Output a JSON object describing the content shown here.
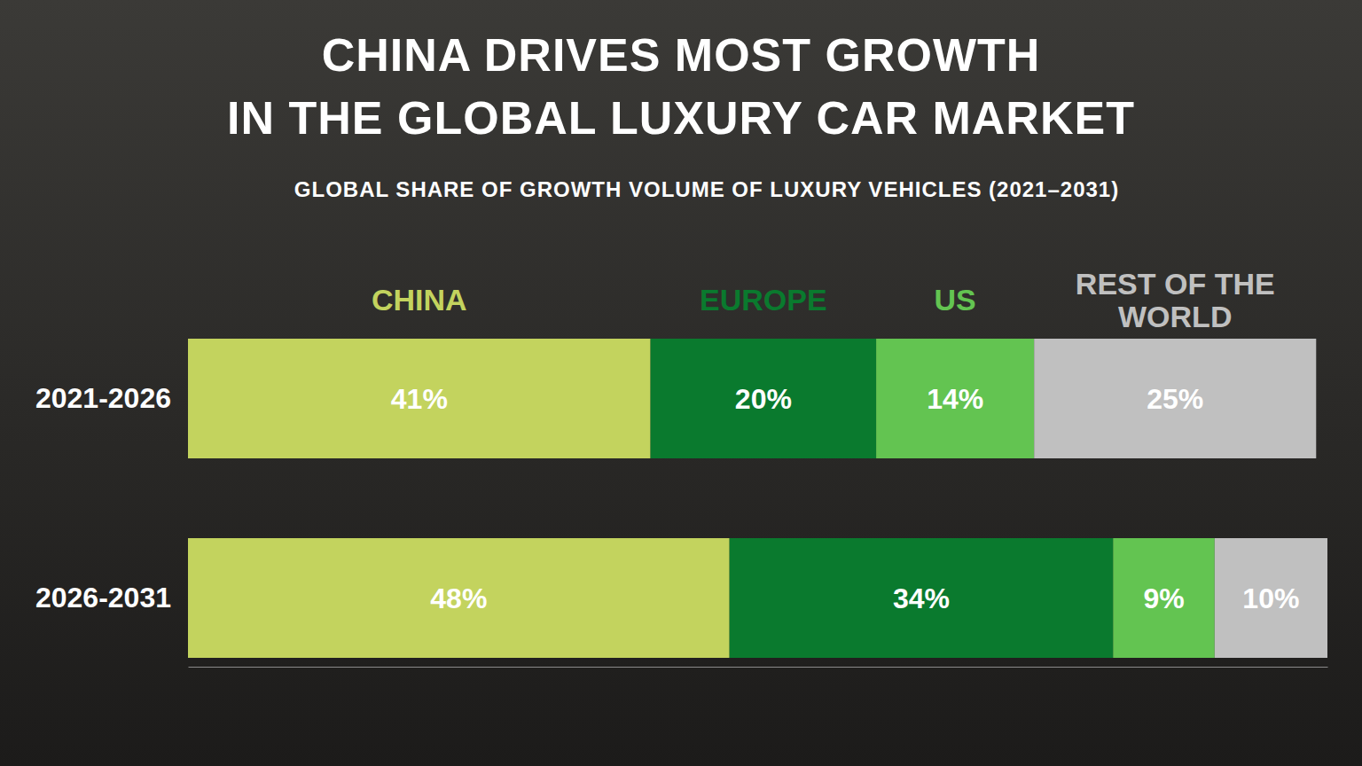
{
  "chart_data": {
    "type": "bar",
    "title": "CHINA DRIVES MOST GROWTH IN THE GLOBAL LUXURY CAR MARKET",
    "subtitle": "GLOBAL SHARE OF GROWTH VOLUME OF LUXURY VEHICLES  (2021–2031)",
    "categories": [
      "2021-2026",
      "2026-2031"
    ],
    "orientation": "horizontal",
    "stacked": true,
    "data_labels": true,
    "legend": "top",
    "tick_labels": "y",
    "xlim": [
      0,
      101
    ],
    "series": [
      {
        "name": "CHINA",
        "color": "#c3d35e",
        "values": [
          41,
          48
        ],
        "value_labels": [
          "41%",
          "48%"
        ]
      },
      {
        "name": "EUROPE",
        "color": "#0a7a2e",
        "values": [
          20,
          34
        ],
        "value_labels": [
          "20%",
          "34%"
        ]
      },
      {
        "name": "US",
        "color": "#63c451",
        "values": [
          14,
          9
        ],
        "value_labels": [
          "14%",
          "9%"
        ]
      },
      {
        "name": "REST OF THE WORLD",
        "color": "#c0c0c0",
        "values": [
          25,
          10
        ],
        "value_labels": [
          "25%",
          "10%"
        ]
      }
    ]
  }
}
